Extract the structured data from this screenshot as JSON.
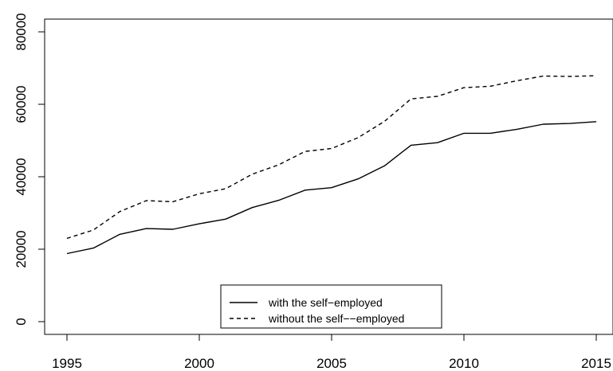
{
  "chart_data": {
    "type": "line",
    "title": "",
    "xlabel": "",
    "ylabel": "",
    "xlim": [
      1995,
      2015
    ],
    "ylim": [
      0,
      80000
    ],
    "x_ticks": [
      1995,
      2000,
      2005,
      2010,
      2015
    ],
    "y_ticks": [
      0,
      20000,
      40000,
      60000,
      80000
    ],
    "grid": false,
    "legend_position": "bottom-center",
    "x": [
      1995,
      1996,
      1997,
      1998,
      1999,
      2000,
      2001,
      2002,
      2003,
      2004,
      2005,
      2006,
      2007,
      2008,
      2009,
      2010,
      2011,
      2012,
      2013,
      2014,
      2015
    ],
    "series": [
      {
        "name": "with the self−employed",
        "line_style": "solid",
        "color": "#000000",
        "values": [
          18800,
          20300,
          24100,
          25700,
          25500,
          27000,
          28300,
          31500,
          33500,
          36300,
          37000,
          39400,
          43000,
          48700,
          49400,
          52000,
          52000,
          53100,
          54500,
          54700,
          55200
        ]
      },
      {
        "name": "without the self−−employed",
        "line_style": "dashed",
        "color": "#000000",
        "values": [
          23000,
          25300,
          30400,
          33400,
          33100,
          35300,
          36700,
          40700,
          43300,
          47000,
          47800,
          50800,
          55300,
          61500,
          62200,
          64600,
          65000,
          66500,
          67800,
          67700,
          67900
        ]
      }
    ]
  }
}
